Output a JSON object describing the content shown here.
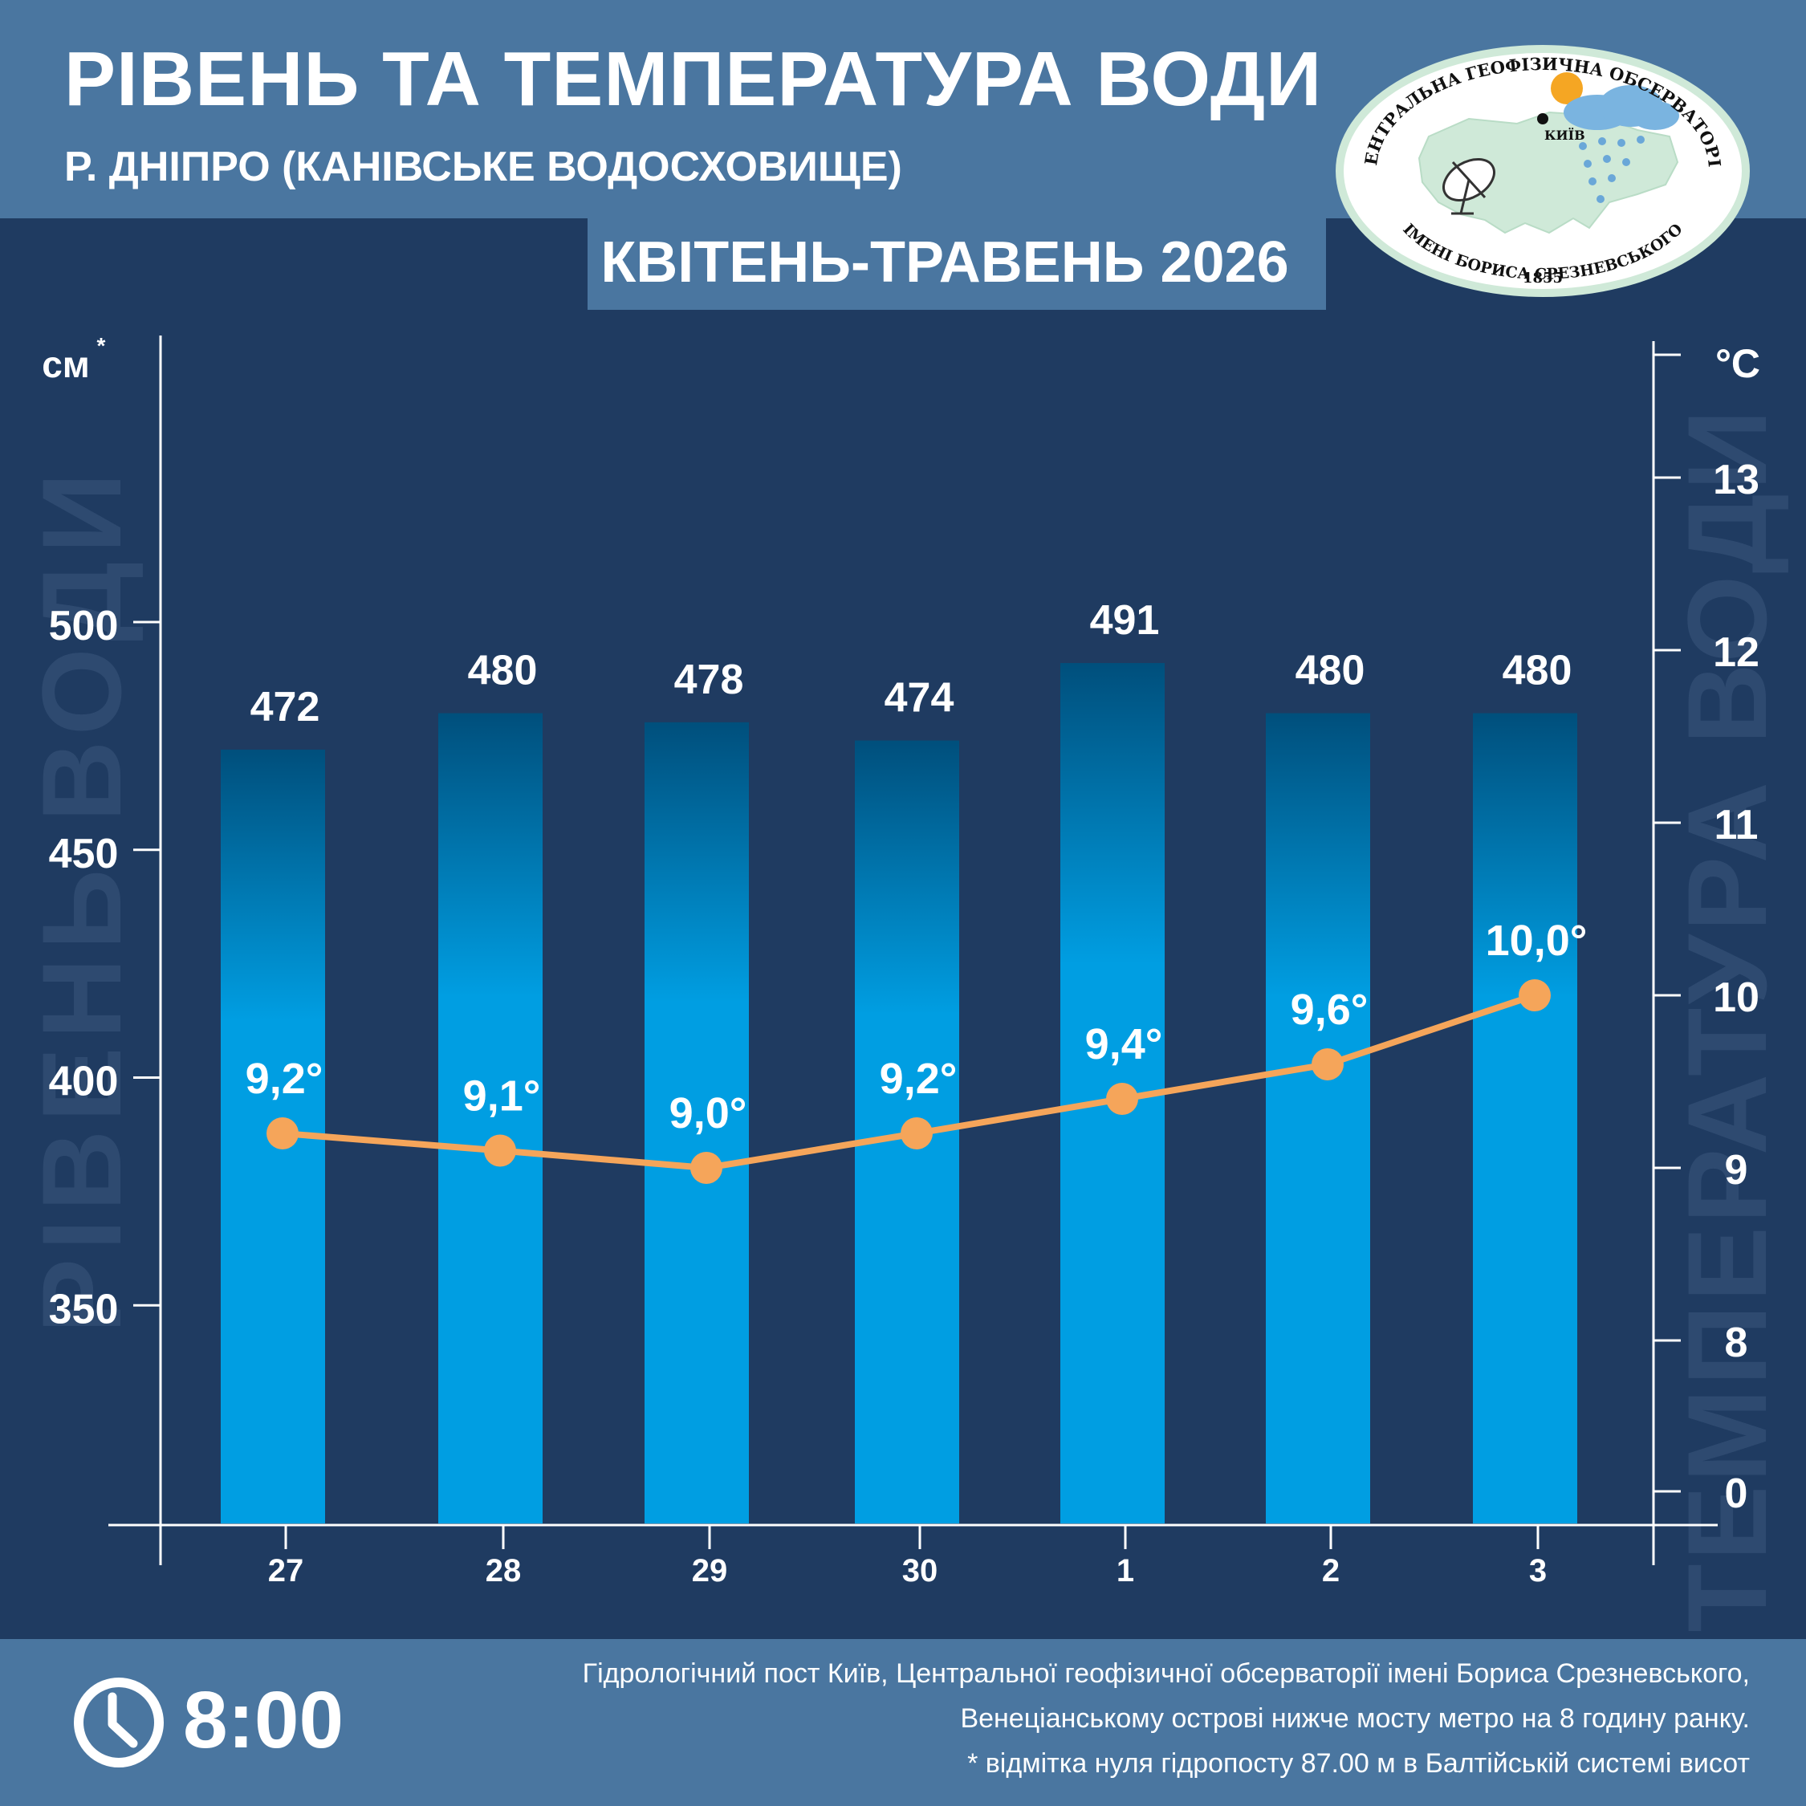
{
  "header": {
    "title": "РІВЕНЬ ТА ТЕМПЕРАТУРА ВОДИ",
    "subtitle": "Р. ДНІПРО (КАНІВСЬКЕ ВОДОСХОВИЩЕ)",
    "period": "КВІТЕНЬ-ТРАВЕНЬ 2026"
  },
  "logo": {
    "top_text": "ЦЕНТРАЛЬНА ГЕОФІЗИЧНА ОБСЕРВАТОРІЯ",
    "bottom_text": "ІМЕНІ БОРИСА СРЕЗНЕВСЬКОГО",
    "year": "1855",
    "city": "КИЇВ"
  },
  "chart_data": {
    "type": "bar",
    "categories": [
      "27",
      "28",
      "29",
      "30",
      "1",
      "2",
      "3"
    ],
    "series": [
      {
        "values": [
          472,
          480,
          478,
          474,
          491,
          480,
          480
        ],
        "type": "bar",
        "axis": "left"
      },
      {
        "values": [
          9.2,
          9.1,
          9.0,
          9.2,
          9.4,
          9.6,
          10.0
        ],
        "type": "line",
        "axis": "right"
      }
    ],
    "bar_labels": [
      "472",
      "480",
      "478",
      "474",
      "491",
      "480",
      "480"
    ],
    "line_labels": [
      "9,2°",
      "9,1°",
      "9,0°",
      "9,2°",
      "9,4°",
      "9,6°",
      "10,0°"
    ],
    "left_axis": {
      "unit": "см",
      "unit_mark": "*",
      "title": "РІВЕНЬ ВОДИ",
      "ticks": [
        "350",
        "400",
        "450",
        "500"
      ]
    },
    "right_axis": {
      "unit": "°C",
      "title": "ТЕМПЕРАТУРА ВОДИ",
      "ticks": [
        "0",
        "8",
        "9",
        "10",
        "11",
        "12",
        "13"
      ]
    },
    "colors": {
      "bar_top": "#004f7c",
      "bar_bottom": "#009ee2",
      "line": "#f5a55a",
      "background": "#1f3b61",
      "axis": "#ffffff",
      "watermark": "#2e4a70"
    }
  },
  "footer": {
    "time": "8:00",
    "notes": [
      "Гідрологічний пост Київ, Центральної геофізичної обсерваторії імені Бориса Срезневського,",
      "Венеціанському острові нижче мосту метро  на 8 годину ранку.",
      "* відмітка нуля гідропосту 87.00 м в Балтійській системі висот"
    ]
  }
}
